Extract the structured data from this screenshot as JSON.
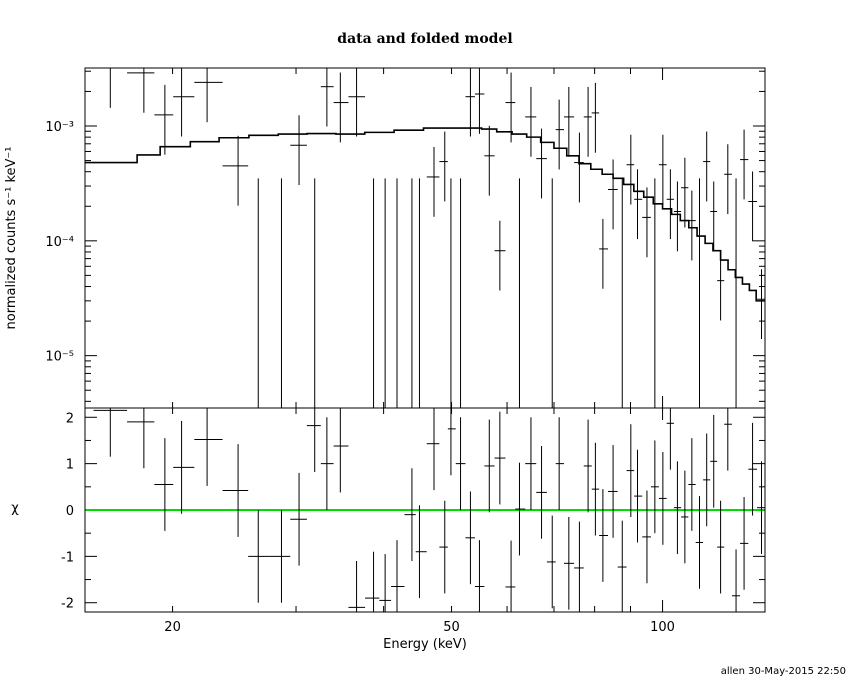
{
  "chart_data": [
    {
      "type": "scatter",
      "panel": "top",
      "title": "data and folded model",
      "ylabel": "normalized counts s⁻¹ keV⁻¹",
      "xlabel": "",
      "xscale": "log",
      "yscale": "log",
      "xlim": [
        15,
        140
      ],
      "ylim": [
        3.5e-06,
        0.0032
      ],
      "yticks": [
        1e-05,
        0.0001,
        0.001
      ],
      "ytick_labels": [
        "10⁻⁵",
        "10⁻⁴",
        "10⁻³"
      ],
      "series": [
        {
          "style": "crosses",
          "x": [
            16.3,
            18.2,
            19.5,
            20.6,
            22.4,
            24.8,
            26.5,
            28.6,
            30.3,
            31.9,
            33.2,
            34.7,
            36.6,
            38.7,
            40.2,
            41.8,
            43.9,
            45.0,
            47.2,
            48.9,
            49.9,
            51.5,
            53.2,
            54.8,
            56.6,
            58.6,
            60.8,
            62.5,
            64.9,
            67.2,
            69.6,
            71.2,
            73.5,
            76.1,
            78.3,
            80.2,
            82.2,
            85.0,
            87.6,
            90.1,
            92.1,
            95.0,
            97.5,
            100.1,
            102.6,
            105.0,
            107.6,
            110.1,
            112.9,
            115.6,
            118.3,
            121.0,
            123.9,
            127.3,
            130.7,
            134.4,
            138.4
          ],
          "y": [
            0.0032,
            0.0029,
            0.00125,
            0.0018,
            0.0024,
            0.00045,
            3.5e-06,
            3.5e-06,
            0.00068,
            3.5e-06,
            0.0022,
            0.0016,
            0.0018,
            3.5e-06,
            3.5e-06,
            3.5e-06,
            3.5e-06,
            3.5e-06,
            0.00036,
            0.00049,
            3.5e-06,
            3.5e-06,
            0.0018,
            0.0019,
            0.00055,
            8.2e-05,
            0.0016,
            3.5e-06,
            0.0012,
            0.00052,
            3.5e-06,
            0.00093,
            0.0012,
            0.00048,
            0.0012,
            0.0013,
            8.5e-05,
            0.00028,
            3.5e-06,
            0.00046,
            0.00023,
            0.00016,
            3.5e-06,
            0.00046,
            0.00023,
            0.00018,
            0.00029,
            0.00015,
            3.5e-06,
            0.00049,
            0.00018,
            4.5e-05,
            0.00038,
            3.5e-06,
            0.00051,
            0.00022,
            3.1e-05
          ]
        },
        {
          "style": "step",
          "x": [
            15,
            17.8,
            19.2,
            21.2,
            23.3,
            25.7,
            28.3,
            31.1,
            34.2,
            37.6,
            41.4,
            45.6,
            50.2,
            55.2,
            58.0,
            61.0,
            64.0,
            67.0,
            70.0,
            73.0,
            76.0,
            79.0,
            82.0,
            85.0,
            88.0,
            91.0,
            94.0,
            97.0,
            100.0,
            103.0,
            106.0,
            109.0,
            112.0,
            115.0,
            118.0,
            121.0,
            124.0,
            127.0,
            130.0,
            133.0,
            136.0,
            140.0
          ],
          "y": [
            0.00048,
            0.00056,
            0.00066,
            0.00073,
            0.00079,
            0.00083,
            0.00085,
            0.00086,
            0.00085,
            0.00088,
            0.00092,
            0.00096,
            0.00096,
            0.00094,
            0.00089,
            0.00085,
            0.0008,
            0.00072,
            0.00064,
            0.00055,
            0.00047,
            0.00042,
            0.00038,
            0.00035,
            0.00031,
            0.00027,
            0.00024,
            0.00021,
            0.00019,
            0.00017,
            0.00015,
            0.00013,
            0.00011,
            9.5e-05,
            8.2e-05,
            6.8e-05,
            5.6e-05,
            4.8e-05,
            4.2e-05,
            3.7e-05,
            3e-05,
            2.4e-05
          ]
        }
      ]
    },
    {
      "type": "scatter",
      "panel": "bottom",
      "xlabel": "Energy (keV)",
      "ylabel": "χ",
      "xscale": "log",
      "xlim": [
        15,
        140
      ],
      "ylim": [
        -2.2,
        2.2
      ],
      "xticks": [
        20,
        50,
        100
      ],
      "yticks": [
        -2,
        -1,
        0,
        1,
        2
      ],
      "zero_line_color": "#00dd00",
      "series": [
        {
          "style": "crosses",
          "x": [
            16.3,
            18.2,
            19.5,
            20.6,
            22.4,
            24.8,
            26.5,
            28.6,
            30.3,
            31.9,
            33.2,
            34.7,
            36.6,
            38.7,
            40.2,
            41.8,
            43.9,
            45.0,
            47.2,
            48.9,
            49.9,
            51.5,
            53.2,
            54.8,
            56.6,
            58.6,
            60.8,
            62.5,
            64.9,
            67.2,
            69.6,
            71.2,
            73.5,
            76.1,
            78.3,
            80.2,
            82.2,
            85.0,
            87.6,
            90.1,
            92.1,
            95.0,
            97.5,
            100.1,
            102.6,
            105.0,
            107.6,
            110.1,
            112.9,
            115.6,
            118.3,
            121.0,
            123.9,
            127.3,
            130.7,
            134.4,
            138.4
          ],
          "y": [
            2.15,
            1.9,
            0.55,
            0.92,
            1.52,
            0.42,
            -1.0,
            -1.0,
            -0.2,
            1.82,
            1.0,
            1.38,
            -2.1,
            -1.9,
            -1.95,
            -1.65,
            -0.1,
            -0.9,
            1.43,
            -0.8,
            1.75,
            1.0,
            -0.6,
            -1.65,
            0.95,
            1.12,
            -1.66,
            0.02,
            1.0,
            0.38,
            -1.12,
            1.0,
            -1.15,
            -1.25,
            0.95,
            0.45,
            -0.55,
            0.4,
            -1.23,
            0.85,
            0.3,
            -0.58,
            0.5,
            0.25,
            1.87,
            0.05,
            -0.15,
            0.55,
            -0.7,
            0.65,
            1.05,
            -0.8,
            1.85,
            -1.85,
            -0.72,
            0.88,
            0.05
          ]
        }
      ]
    }
  ],
  "footer": "allen 30-May-2015 22:50"
}
